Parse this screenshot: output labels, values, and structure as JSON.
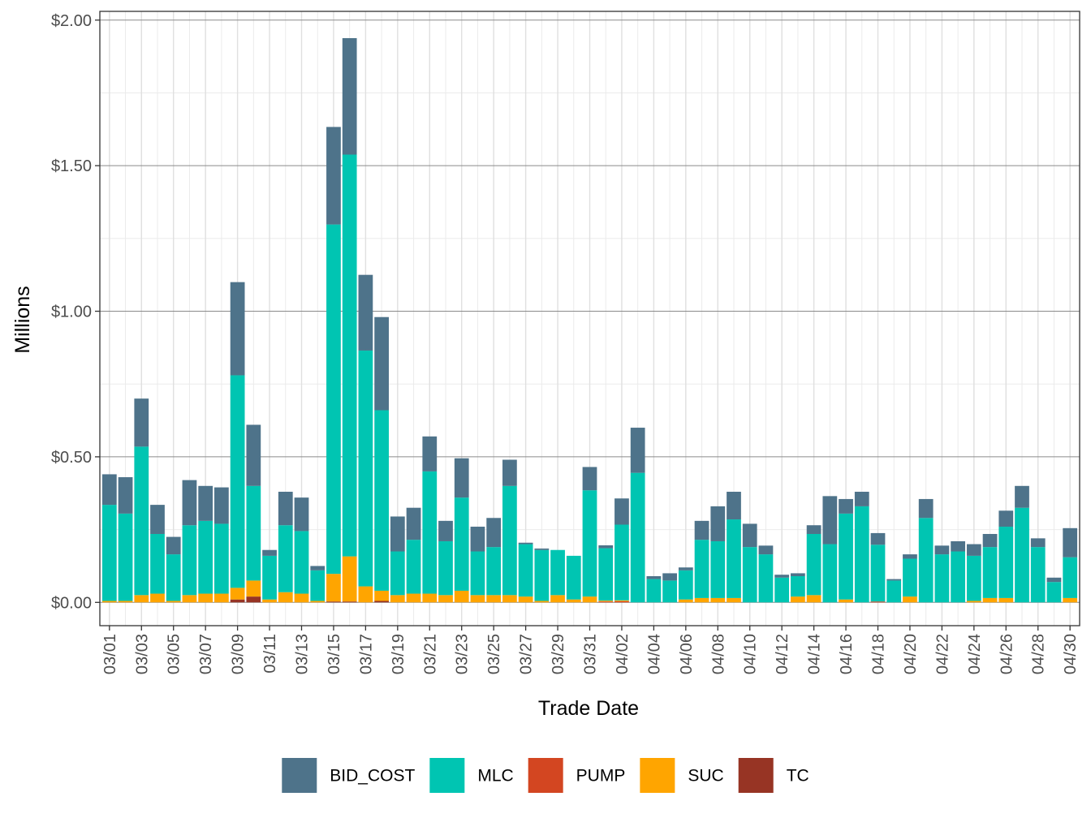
{
  "chart_data": {
    "type": "bar",
    "stacked": true,
    "xlabel": "Trade Date",
    "ylabel": "Millions",
    "ylim": [
      -0.08,
      2.03
    ],
    "yticks": [
      0,
      0.5,
      1.0,
      1.5,
      2.0
    ],
    "ytick_labels": [
      "$0.00",
      "$0.50",
      "$1.00",
      "$1.50",
      "$2.00"
    ],
    "grid": true,
    "legend_position": "bottom",
    "categories": [
      "03/01",
      "03/02",
      "03/03",
      "03/04",
      "03/05",
      "03/06",
      "03/07",
      "03/08",
      "03/09",
      "03/10",
      "03/11",
      "03/12",
      "03/13",
      "03/14",
      "03/15",
      "03/16",
      "03/17",
      "03/18",
      "03/19",
      "03/20",
      "03/21",
      "03/22",
      "03/23",
      "03/24",
      "03/25",
      "03/26",
      "03/27",
      "03/28",
      "03/29",
      "03/30",
      "03/31",
      "04/01",
      "04/02",
      "04/03",
      "04/04",
      "04/05",
      "04/06",
      "04/07",
      "04/08",
      "04/09",
      "04/10",
      "04/11",
      "04/12",
      "04/13",
      "04/14",
      "04/15",
      "04/16",
      "04/17",
      "04/18",
      "04/19",
      "04/20",
      "04/21",
      "04/22",
      "04/23",
      "04/24",
      "04/25",
      "04/26",
      "04/27",
      "04/28",
      "04/29",
      "04/30"
    ],
    "xtick_labels": [
      "03/01",
      "03/03",
      "03/05",
      "03/07",
      "03/09",
      "03/11",
      "03/13",
      "03/15",
      "03/17",
      "03/19",
      "03/21",
      "03/23",
      "03/25",
      "03/27",
      "03/29",
      "03/31",
      "04/02",
      "04/04",
      "04/06",
      "04/08",
      "04/10",
      "04/12",
      "04/14",
      "04/16",
      "04/18",
      "04/20",
      "04/22",
      "04/24",
      "04/26",
      "04/28",
      "04/30"
    ],
    "series": [
      {
        "name": "TC",
        "color": "#973424",
        "values": [
          0,
          0,
          0,
          0,
          0,
          0,
          0,
          0,
          0.01,
          0.02,
          0,
          0,
          0,
          0,
          0.003,
          0.003,
          0,
          0.005,
          0,
          0,
          0,
          0,
          0,
          0,
          0,
          0,
          0,
          0,
          0,
          0,
          0,
          0,
          0,
          0,
          0,
          0,
          0,
          0,
          0,
          0,
          0,
          0,
          0,
          0,
          0,
          0,
          0,
          0,
          0,
          0,
          0,
          0,
          0,
          0,
          0,
          0,
          0,
          0,
          0,
          0,
          0
        ]
      },
      {
        "name": "PUMP",
        "color": "#d34621",
        "values": [
          0,
          0,
          0,
          0,
          0,
          0,
          0,
          0,
          0,
          0,
          0,
          0,
          0,
          0,
          0,
          0,
          0,
          0,
          0,
          0,
          0,
          0,
          0,
          0,
          0,
          0,
          0,
          0,
          0,
          0,
          0,
          0.003,
          0.004,
          0,
          0,
          0,
          0,
          0,
          0,
          0,
          0,
          0,
          0,
          0,
          0,
          0,
          0,
          0,
          0.003,
          0,
          0,
          0,
          0,
          0,
          0,
          0,
          0,
          0,
          0,
          0,
          0
        ]
      },
      {
        "name": "SUC",
        "color": "#ffa500",
        "values": [
          0.005,
          0.005,
          0.025,
          0.03,
          0.005,
          0.025,
          0.03,
          0.03,
          0.04,
          0.055,
          0.01,
          0.035,
          0.03,
          0.005,
          0.095,
          0.155,
          0.055,
          0.035,
          0.025,
          0.03,
          0.03,
          0.025,
          0.04,
          0.025,
          0.025,
          0.025,
          0.02,
          0.005,
          0.025,
          0.01,
          0.02,
          0.003,
          0.003,
          0,
          0,
          0,
          0.01,
          0.015,
          0.015,
          0.015,
          0,
          0,
          0,
          0.02,
          0.025,
          0,
          0.01,
          0,
          0,
          0,
          0.02,
          0,
          0,
          0,
          0.005,
          0.015,
          0.015,
          0,
          0,
          0,
          0.015
        ]
      },
      {
        "name": "MLC",
        "color": "#00c5b2",
        "values": [
          0.33,
          0.3,
          0.51,
          0.205,
          0.16,
          0.24,
          0.25,
          0.24,
          0.73,
          0.325,
          0.15,
          0.23,
          0.215,
          0.105,
          1.2,
          1.38,
          0.81,
          0.62,
          0.15,
          0.185,
          0.42,
          0.185,
          0.32,
          0.15,
          0.165,
          0.375,
          0.18,
          0.175,
          0.155,
          0.15,
          0.365,
          0.18,
          0.26,
          0.445,
          0.08,
          0.075,
          0.1,
          0.2,
          0.195,
          0.27,
          0.19,
          0.165,
          0.085,
          0.07,
          0.21,
          0.2,
          0.295,
          0.33,
          0.195,
          0.075,
          0.13,
          0.29,
          0.165,
          0.175,
          0.155,
          0.175,
          0.245,
          0.325,
          0.19,
          0.07,
          0.14
        ]
      },
      {
        "name": "BID_COST",
        "color": "#4e738a",
        "values": [
          0.105,
          0.125,
          0.165,
          0.1,
          0.06,
          0.155,
          0.12,
          0.125,
          0.32,
          0.21,
          0.02,
          0.115,
          0.115,
          0.015,
          0.335,
          0.4,
          0.26,
          0.32,
          0.12,
          0.11,
          0.12,
          0.07,
          0.135,
          0.085,
          0.1,
          0.09,
          0.005,
          0.005,
          0,
          0,
          0.08,
          0.01,
          0.09,
          0.155,
          0.01,
          0.025,
          0.01,
          0.065,
          0.12,
          0.095,
          0.08,
          0.03,
          0.01,
          0.01,
          0.03,
          0.165,
          0.05,
          0.05,
          0.04,
          0.005,
          0.015,
          0.065,
          0.03,
          0.035,
          0.04,
          0.045,
          0.055,
          0.075,
          0.03,
          0.015,
          0.1
        ]
      }
    ],
    "legend_order": [
      "BID_COST",
      "MLC",
      "PUMP",
      "SUC",
      "TC"
    ]
  }
}
